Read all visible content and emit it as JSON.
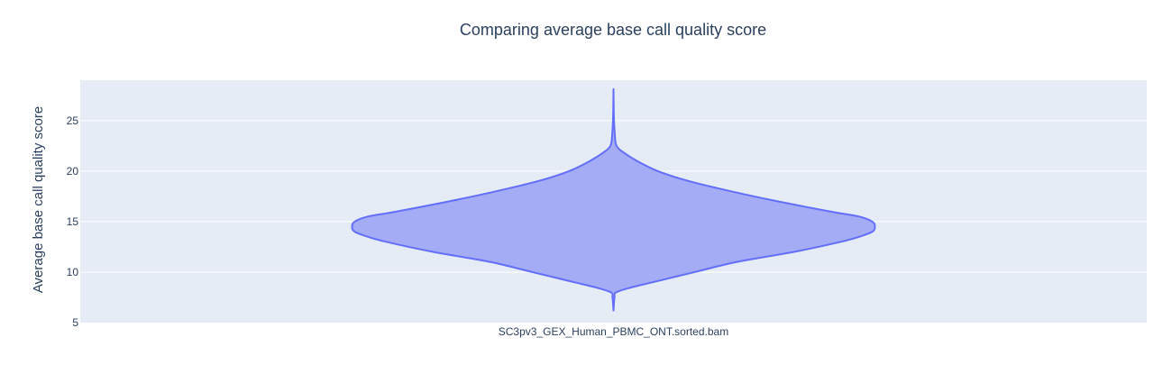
{
  "chart_data": {
    "type": "violin",
    "title": "Comparing average base call quality score",
    "xlabel": "",
    "ylabel": "Average base call quality score",
    "categories": [
      "SC3pv3_GEX_Human_PBMC_ONT.sorted.bam"
    ],
    "ylim": [
      5,
      29
    ],
    "yticks": [
      5,
      10,
      15,
      20,
      25
    ],
    "grid": true,
    "colors": {
      "fill": "#a3acf5",
      "line": "#636efa",
      "plot_bg": "#e5ecf6",
      "grid": "#ffffff",
      "text": "#2a3f5f",
      "tick_text": "#2a3f5f"
    },
    "series": [
      {
        "values_y": [
          6.2,
          7.0,
          7.5,
          8.0,
          8.5,
          9.0,
          10.0,
          11.0,
          12.0,
          13.0,
          13.5,
          14.0,
          14.5,
          15.0,
          15.5,
          16.0,
          17.0,
          18.0,
          19.0,
          20.0,
          21.0,
          22.0,
          22.5,
          23.0,
          24.0,
          25.0,
          26.0,
          27.0,
          28.0
        ],
        "half_width_fraction": [
          0.0,
          0.002,
          0.004,
          0.01,
          0.07,
          0.15,
          0.31,
          0.47,
          0.69,
          0.87,
          0.94,
          0.99,
          1.0,
          0.99,
          0.94,
          0.83,
          0.63,
          0.45,
          0.29,
          0.17,
          0.09,
          0.03,
          0.012,
          0.007,
          0.004,
          0.002,
          0.001,
          0.0005,
          0.0
        ]
      }
    ]
  }
}
